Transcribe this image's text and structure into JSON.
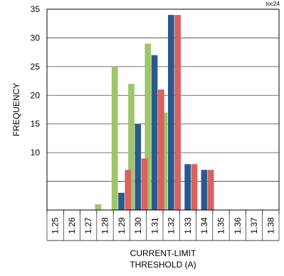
{
  "figure_tag": "toc24",
  "chart_data": {
    "type": "bar",
    "title": "",
    "xlabel_line1": "CURRENT-LIMIT",
    "xlabel_line2": "THRESHOLD (A)",
    "ylabel": "FREQUENCY",
    "ylim": [
      0,
      35
    ],
    "yticks": [
      10,
      15,
      20,
      25,
      30,
      35
    ],
    "grid": true,
    "categories": [
      "1.25",
      "1.26",
      "1.27",
      "1.28",
      "1.29",
      "1.30",
      "1.31",
      "1.32",
      "1.33",
      "1.34",
      "1.35",
      "1.36",
      "1.37",
      "1.38"
    ],
    "series": [
      {
        "color": "#9dc66b",
        "values": [
          0,
          0,
          0,
          1,
          25,
          22,
          29,
          17,
          0,
          0,
          0,
          0,
          0,
          0
        ]
      },
      {
        "color": "#2a5a8c",
        "values": [
          0,
          0,
          0,
          0,
          3,
          15,
          27,
          34,
          8,
          7,
          0,
          0,
          0,
          0
        ]
      },
      {
        "color": "#d9625f",
        "values": [
          0,
          0,
          0,
          0,
          7,
          9,
          21,
          34,
          8,
          7,
          0,
          0,
          0,
          0
        ]
      }
    ]
  }
}
